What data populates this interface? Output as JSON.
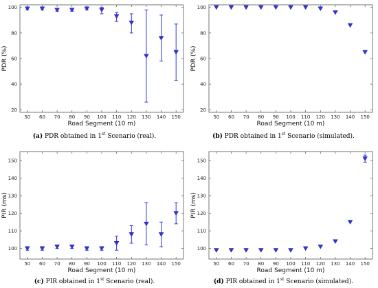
{
  "chart_data": [
    {
      "id": "a",
      "type": "scatter",
      "caption": {
        "letter": "(a)",
        "pre": "PDR obtained in 1",
        "sup": "st",
        "post": " Scenario (real)."
      },
      "xlabel": "Road Segment (10 m)",
      "ylabel": "PDR (%)",
      "x": [
        50,
        60,
        70,
        80,
        90,
        100,
        110,
        120,
        130,
        140,
        150
      ],
      "y": [
        99,
        99,
        98,
        98,
        99,
        98,
        93,
        88,
        62,
        76,
        65
      ],
      "err_low": [
        98,
        98,
        97,
        97,
        98,
        95,
        89,
        80,
        26,
        58,
        43
      ],
      "err_high": [
        100,
        100,
        99,
        99,
        100,
        100,
        96,
        95,
        98,
        94,
        87
      ],
      "xlim": [
        45,
        155
      ],
      "ylim": [
        18,
        102
      ],
      "yticks": [
        20,
        40,
        60,
        80,
        100
      ],
      "xticks": [
        "50",
        "60",
        "70",
        "80",
        "90",
        "100",
        "110",
        "120",
        "130",
        "140",
        "150"
      ],
      "grid": false,
      "color": "#3333dd"
    },
    {
      "id": "b",
      "type": "scatter",
      "caption": {
        "letter": "(b)",
        "pre": "PDR obtained in 1",
        "sup": "st",
        "post": " Scenario (simulated)."
      },
      "xlabel": "Road Segment (10 m)",
      "ylabel": "PDR (%)",
      "x": [
        50,
        60,
        70,
        80,
        90,
        100,
        110,
        120,
        130,
        140,
        150
      ],
      "y": [
        100,
        100,
        100,
        100,
        100,
        100,
        100,
        99,
        96,
        86,
        65
      ],
      "err_low": [
        100,
        100,
        100,
        100,
        100,
        100,
        100,
        99,
        96,
        86,
        65
      ],
      "err_high": [
        100,
        100,
        100,
        100,
        100,
        100,
        100,
        99,
        96,
        86,
        65
      ],
      "xlim": [
        45,
        155
      ],
      "ylim": [
        18,
        102
      ],
      "yticks": [
        20,
        40,
        60,
        80,
        100
      ],
      "xticks": [
        "50",
        "60",
        "70",
        "80",
        "90",
        "100",
        "110",
        "120",
        "130",
        "140",
        "150"
      ],
      "grid": false,
      "color": "#3333dd"
    },
    {
      "id": "c",
      "type": "scatter",
      "caption": {
        "letter": "(c)",
        "pre": "PIR obtained in 1",
        "sup": "st",
        "post": " Scenario (real)."
      },
      "xlabel": "Road Segment (10 m)",
      "ylabel": "PIR (ms)",
      "x": [
        50,
        60,
        70,
        80,
        90,
        100,
        110,
        120,
        130,
        140,
        150
      ],
      "y": [
        100,
        100,
        101,
        101,
        100,
        100,
        103,
        108,
        114,
        108,
        120
      ],
      "err_low": [
        99,
        99,
        100,
        100,
        99,
        99,
        99,
        103,
        102,
        101,
        114
      ],
      "err_high": [
        101,
        101,
        102,
        102,
        101,
        101,
        107,
        113,
        126,
        115,
        126
      ],
      "xlim": [
        45,
        155
      ],
      "ylim": [
        94,
        155
      ],
      "yticks": [
        100,
        110,
        120,
        130,
        140,
        150
      ],
      "xticks": [
        "50",
        "60",
        "70",
        "80",
        "90",
        "100",
        "110",
        "120",
        "130",
        "140",
        "150"
      ],
      "grid": false,
      "color": "#3333dd"
    },
    {
      "id": "d",
      "type": "scatter",
      "caption": {
        "letter": "(d)",
        "pre": "PIR obtained in 1",
        "sup": "st",
        "post": " Scenario (simulated)."
      },
      "xlabel": "Road Segment (10 m)",
      "ylabel": "PIR (ms)",
      "x": [
        50,
        60,
        70,
        80,
        90,
        100,
        110,
        120,
        130,
        140,
        150
      ],
      "y": [
        99,
        99,
        99,
        99,
        99,
        99,
        100,
        101,
        104,
        115,
        151
      ],
      "err_low": [
        99,
        99,
        99,
        99,
        99,
        99,
        100,
        101,
        104,
        115,
        149
      ],
      "err_high": [
        99,
        99,
        99,
        99,
        99,
        99,
        100,
        101,
        104,
        115,
        153
      ],
      "xlim": [
        45,
        155
      ],
      "ylim": [
        94,
        155
      ],
      "yticks": [
        100,
        110,
        120,
        130,
        140,
        150
      ],
      "xticks": [
        "50",
        "60",
        "70",
        "80",
        "90",
        "100",
        "110",
        "120",
        "130",
        "140",
        "150"
      ],
      "grid": false,
      "color": "#3333dd"
    }
  ]
}
